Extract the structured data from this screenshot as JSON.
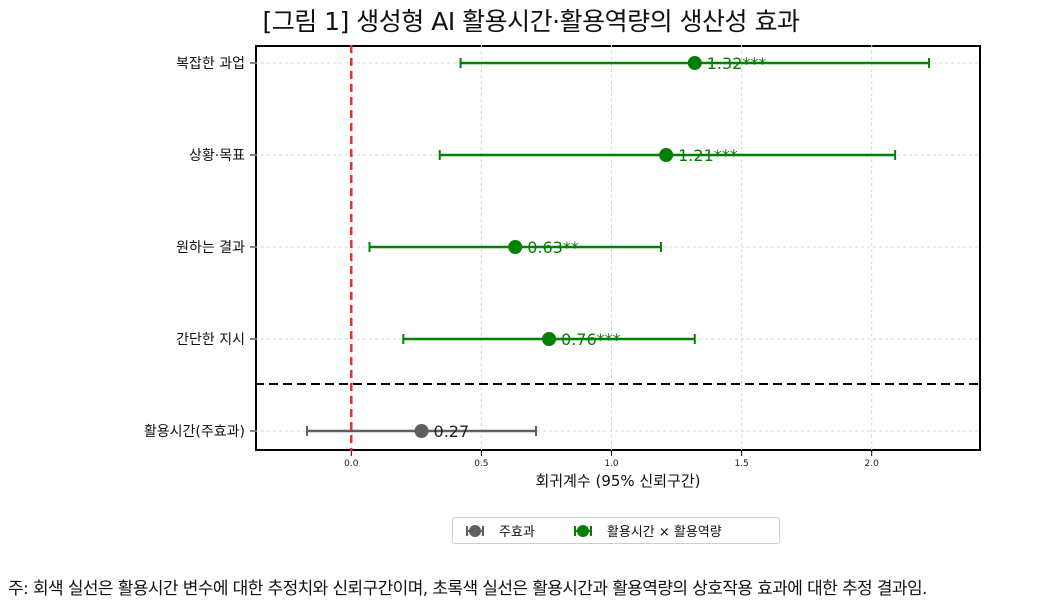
{
  "title": "[그림 1] 생성형 AI 활용시간·활용역량의 생산성 효과",
  "note": "주: 회색 실선은 활용시간 변수에 대한 추정치와 신뢰구간이며, 초록색 실선은 활용시간과 활용역량의 상호작용 효과에 대한 추정 결과임.",
  "legend": {
    "main": "주효과",
    "interaction": "활용시간 × 활용역량"
  },
  "colors": {
    "main": "#5f5f5f",
    "interaction": "#008000",
    "reference_line": "#e53030",
    "separator": "#000000",
    "grid": "#d6d6d6"
  },
  "chart_data": {
    "type": "forest",
    "xlabel": "회귀계수 (95% 신뢰구간)",
    "xlim": [
      -0.37,
      2.42
    ],
    "xticks": [
      "0.0",
      "0.5",
      "1.0",
      "1.5",
      "2.0"
    ],
    "xtick_values": [
      0,
      0.5,
      1.0,
      1.5,
      2.0
    ],
    "reference_x": 0,
    "grid": true,
    "separator_between": [
      "간단한 지시",
      "활용시간(주효과)"
    ],
    "rows": [
      {
        "label": "복잡한 과업",
        "estimate": 1.32,
        "lower": 0.42,
        "upper": 2.22,
        "annotation": "1.32***",
        "series": "interaction"
      },
      {
        "label": "상황·목표",
        "estimate": 1.21,
        "lower": 0.34,
        "upper": 2.09,
        "annotation": "1.21***",
        "series": "interaction"
      },
      {
        "label": "원하는 결과",
        "estimate": 0.63,
        "lower": 0.07,
        "upper": 1.19,
        "annotation": "0.63**",
        "series": "interaction"
      },
      {
        "label": "간단한 지시",
        "estimate": 0.76,
        "lower": 0.2,
        "upper": 1.32,
        "annotation": "0.76***",
        "series": "interaction"
      },
      {
        "label": "활용시간(주효과)",
        "estimate": 0.27,
        "lower": -0.17,
        "upper": 0.71,
        "annotation": "0.27",
        "series": "main"
      }
    ]
  }
}
